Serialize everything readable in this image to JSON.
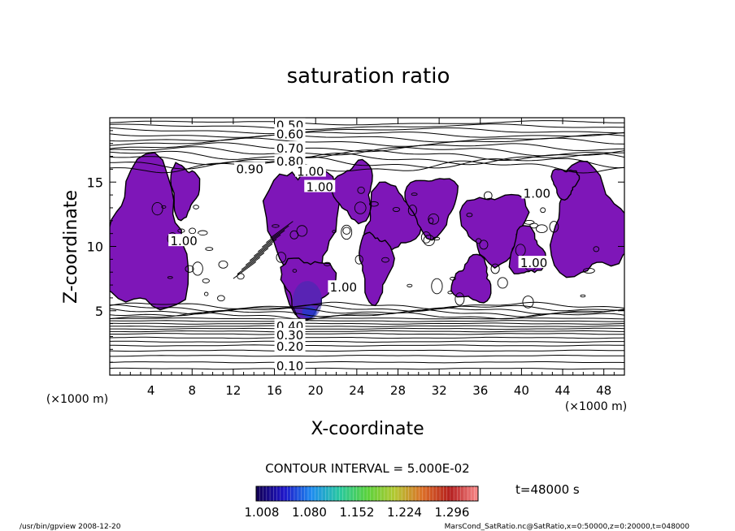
{
  "chart_data": {
    "type": "contour",
    "title": "saturation ratio",
    "xlabel": "X-coordinate",
    "ylabel": "Z-coordinate",
    "x_unit_label": "(×1000 m)",
    "y_unit_label": "(×1000 m)",
    "xlim": [
      0,
      50
    ],
    "ylim": [
      0,
      20
    ],
    "x_ticks": [
      4,
      8,
      12,
      16,
      20,
      24,
      28,
      32,
      36,
      40,
      44,
      48
    ],
    "y_ticks": [
      5,
      10,
      15
    ],
    "contour_labels": [
      {
        "text": "0.50",
        "x": 17.5,
        "y": 19.4
      },
      {
        "text": "0.60",
        "x": 17.5,
        "y": 18.7
      },
      {
        "text": "0.70",
        "x": 17.5,
        "y": 17.6
      },
      {
        "text": "0.80",
        "x": 17.5,
        "y": 16.6
      },
      {
        "text": "0.90",
        "x": 13.6,
        "y": 16.0
      },
      {
        "text": "1.00",
        "x": 19.5,
        "y": 15.8
      },
      {
        "text": "1.00",
        "x": 20.4,
        "y": 14.6
      },
      {
        "text": "1.00",
        "x": 41.5,
        "y": 14.1
      },
      {
        "text": "1.00",
        "x": 41.2,
        "y": 8.7
      },
      {
        "text": "1.00",
        "x": 22.7,
        "y": 6.8
      },
      {
        "text": "1.00",
        "x": 7.2,
        "y": 10.4
      },
      {
        "text": "0.40",
        "x": 17.5,
        "y": 3.8
      },
      {
        "text": "0.30",
        "x": 17.5,
        "y": 3.1
      },
      {
        "text": "0.20",
        "x": 17.5,
        "y": 2.2
      },
      {
        "text": "0.10",
        "x": 17.5,
        "y": 0.7
      }
    ],
    "z_range": [
      0.1,
      1.3
    ],
    "contour_interval_text": "CONTOUR INTERVAL = 5.000E-02",
    "colorbar": {
      "ticks": [
        "1.008",
        "1.080",
        "1.152",
        "1.224",
        "1.296"
      ],
      "colors": [
        "#120052",
        "#1e14c8",
        "#1e8cf0",
        "#28c8a0",
        "#5ad23c",
        "#b4c832",
        "#dc6e28",
        "#b41e1e",
        "#fa8c8c"
      ]
    },
    "fill_color": "#7e16b8",
    "time_label": "t=48000 s"
  },
  "footer": {
    "left": "/usr/bin/gpview   2008-12-20",
    "right": "MarsCond_SatRatio.nc@SatRatio,x=0:50000,z=0:20000,t=048000"
  }
}
